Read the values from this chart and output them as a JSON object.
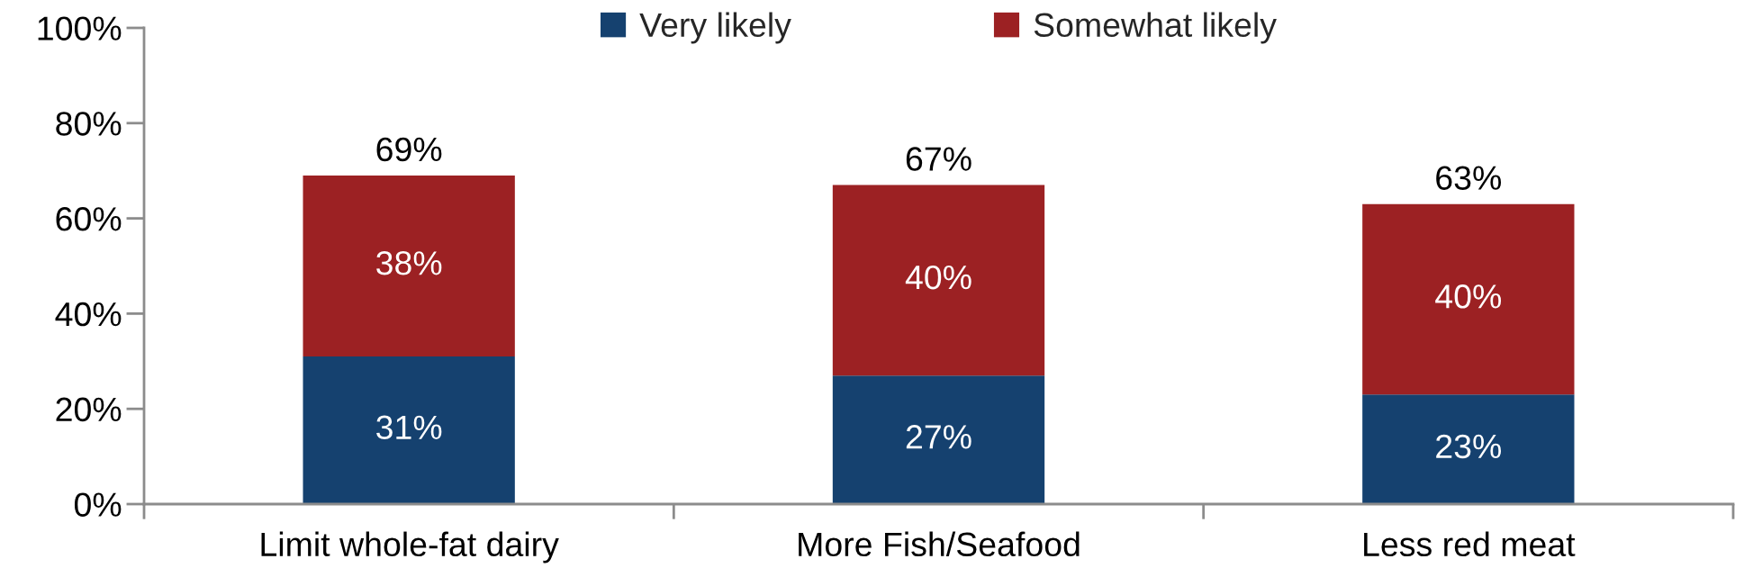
{
  "chart_data": {
    "type": "bar",
    "stacked": true,
    "categories": [
      "Limit whole-fat dairy",
      "More Fish/Seafood",
      "Less red meat"
    ],
    "series": [
      {
        "name": "Very likely",
        "color": "#15416f",
        "values": [
          31,
          27,
          23
        ],
        "value_labels": [
          "31%",
          "27%",
          "23%"
        ]
      },
      {
        "name": "Somewhat likely",
        "color": "#9c2123",
        "values": [
          38,
          40,
          40
        ],
        "value_labels": [
          "38%",
          "40%",
          "40%"
        ]
      }
    ],
    "totals": [
      "69%",
      "67%",
      "63%"
    ],
    "ylim": [
      0,
      100
    ],
    "yticks": [
      {
        "value": 0,
        "label": "0%"
      },
      {
        "value": 20,
        "label": "20%"
      },
      {
        "value": 40,
        "label": "40%"
      },
      {
        "value": 60,
        "label": "60%"
      },
      {
        "value": 80,
        "label": "80%"
      },
      {
        "value": 100,
        "label": "100%"
      }
    ],
    "legend": "top",
    "grid": false
  }
}
